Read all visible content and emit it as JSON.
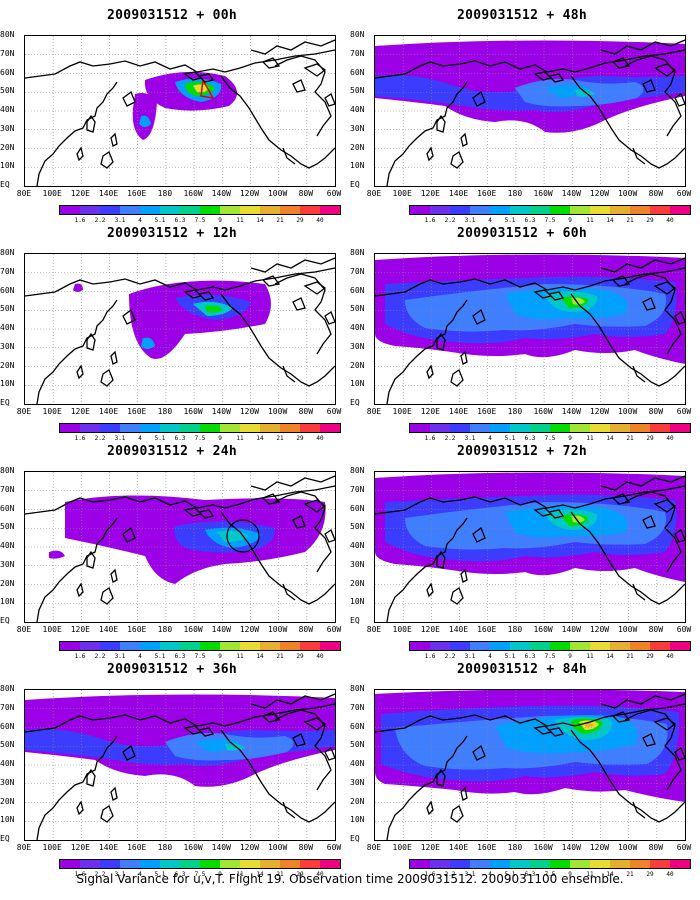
{
  "panels": [
    {
      "title": "2009031512 + 00h",
      "level": 0
    },
    {
      "title": "2009031512 + 48h",
      "level": 3
    },
    {
      "title": "2009031512 + 12h",
      "level": 1
    },
    {
      "title": "2009031512 + 60h",
      "level": 4
    },
    {
      "title": "2009031512 + 24h",
      "level": 2
    },
    {
      "title": "2009031512 + 72h",
      "level": 4
    },
    {
      "title": "2009031512 + 36h",
      "level": 3
    },
    {
      "title": "2009031512 + 84h",
      "level": 5
    }
  ],
  "lat_labels": [
    "80N",
    "70N",
    "60N",
    "50N",
    "40N",
    "30N",
    "20N",
    "10N",
    "EQ"
  ],
  "lon_labels": [
    "80E",
    "100E",
    "120E",
    "140E",
    "160E",
    "180",
    "160W",
    "140W",
    "120W",
    "100W",
    "80W",
    "60W"
  ],
  "colorbar": {
    "values": [
      "1.6",
      "2.2",
      "3.1",
      "4",
      "5.1",
      "6.3",
      "7.5",
      "9",
      "11",
      "14",
      "21",
      "29",
      "40"
    ],
    "colors": [
      "#9b00e6",
      "#6e2ff0",
      "#3c3cff",
      "#3f7fff",
      "#00a0ff",
      "#00c8c8",
      "#00d28c",
      "#00dc00",
      "#a0e632",
      "#e6dc32",
      "#e6af2d",
      "#f08228",
      "#fa3c3c",
      "#f00082"
    ]
  },
  "footer": "Signal Variance for u,v,T. Flight 19. Observation time 2009031512. 2009031100 ensemble."
}
